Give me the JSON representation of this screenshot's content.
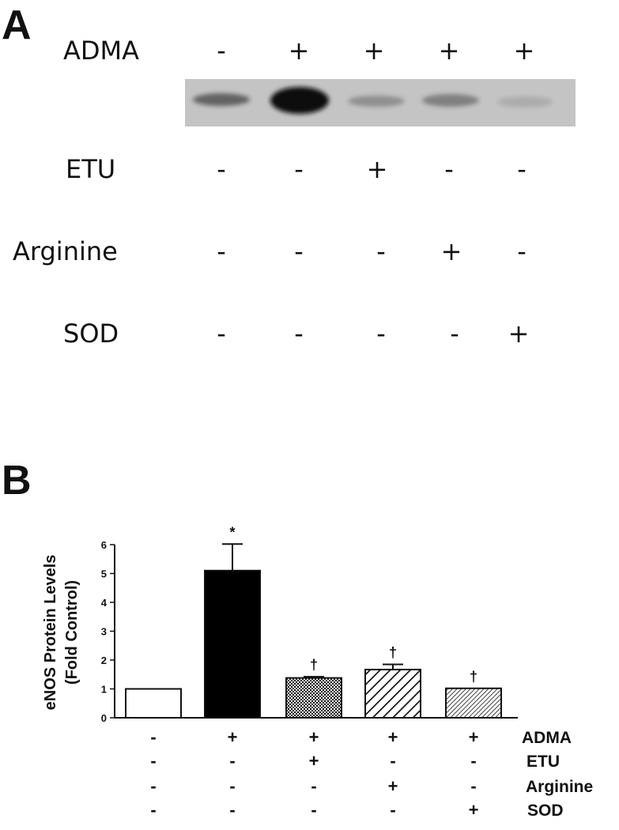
{
  "panel_a": {
    "letter": "A",
    "rows": [
      {
        "label": "ADMA",
        "signs": [
          "-",
          "+",
          "+",
          "+",
          "+"
        ]
      },
      {
        "label": "ETU",
        "signs": [
          "-",
          "-",
          "+",
          "-",
          "-"
        ]
      },
      {
        "label": "Arginine",
        "signs": [
          "-",
          "-",
          "-",
          "+",
          "-"
        ]
      },
      {
        "label": "SOD",
        "signs": [
          "-",
          "-",
          "-",
          "-",
          "+"
        ]
      }
    ],
    "blot_band_intensity": [
      0.6,
      1.0,
      0.3,
      0.4,
      0.15
    ]
  },
  "panel_b": {
    "letter": "B"
  },
  "chart_data": {
    "type": "bar",
    "title": "",
    "xlabel": "",
    "ylabel_line1": "eNOS Protein Levels",
    "ylabel_line2": "(Fold Control)",
    "ylim": [
      0,
      6
    ],
    "yticks": [
      "0",
      "1",
      "2",
      "3",
      "4",
      "5",
      "6"
    ],
    "values": [
      1.0,
      5.1,
      1.38,
      1.67,
      1.02
    ],
    "errors": [
      0,
      0.92,
      0.04,
      0.18,
      0
    ],
    "fills": [
      "white",
      "black",
      "crosshatch",
      "wide-diagonal",
      "fine-diagonal"
    ],
    "significance": [
      "",
      "*",
      "†",
      "†",
      "†"
    ],
    "treatments": [
      {
        "label": "ADMA",
        "signs": [
          "-",
          "+",
          "+",
          "+",
          "+"
        ]
      },
      {
        "label": "ETU",
        "signs": [
          "-",
          "-",
          "+",
          "-",
          "-"
        ]
      },
      {
        "label": "Arginine",
        "signs": [
          "-",
          "-",
          "-",
          "+",
          "-"
        ]
      },
      {
        "label": "SOD",
        "signs": [
          "-",
          "-",
          "-",
          "-",
          "+"
        ]
      }
    ]
  }
}
